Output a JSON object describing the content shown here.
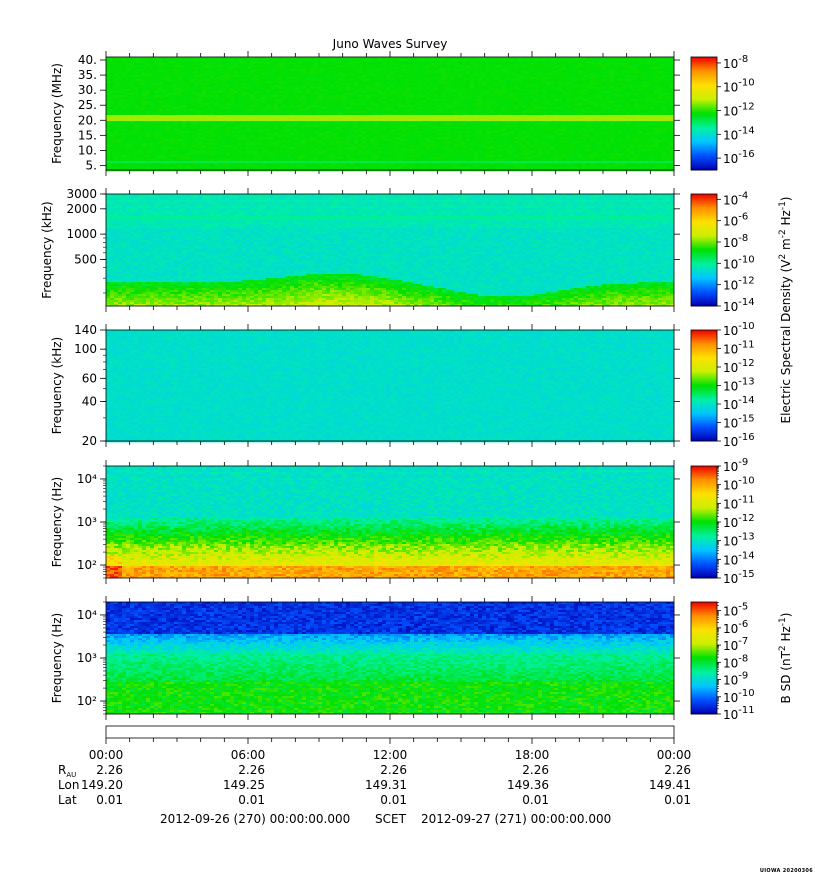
{
  "title": "Juno Waves Survey",
  "stamp": "UIOWA 20200306",
  "chart_data": [
    {
      "type": "heatmap",
      "ylabel": "Frequency (MHz)",
      "yscale": "linear",
      "ylim": [
        3.5,
        41
      ],
      "yticks": [
        {
          "v": 5,
          "t": "5."
        },
        {
          "v": 10,
          "t": "10."
        },
        {
          "v": 15,
          "t": "15."
        },
        {
          "v": 20,
          "t": "20."
        },
        {
          "v": 25,
          "t": "25."
        },
        {
          "v": 30,
          "t": "30."
        },
        {
          "v": 35,
          "t": "35."
        },
        {
          "v": 40,
          "t": "40."
        }
      ],
      "colorbar": {
        "exp_min": -17,
        "exp_max": -7.5,
        "labels": [
          -8,
          -10,
          -12,
          -14,
          -16
        ],
        "minor": 0
      },
      "colorbar_label": "",
      "pattern": "mhz"
    },
    {
      "type": "heatmap",
      "ylabel": "Frequency (kHz)",
      "yscale": "log",
      "ylim": [
        140,
        3000
      ],
      "yticks": [
        {
          "v": 500,
          "t": "500"
        },
        {
          "v": 1000,
          "t": "1000"
        },
        {
          "v": 2000,
          "t": "2000"
        },
        {
          "v": 3000,
          "t": "3000"
        }
      ],
      "colorbar": {
        "exp_min": -14,
        "exp_max": -3.5,
        "labels": [
          -4,
          -6,
          -8,
          -10,
          -12,
          -14
        ],
        "minor": 0
      },
      "colorbar_label": "",
      "pattern": "khz_high"
    },
    {
      "type": "heatmap",
      "ylabel": "Frequency (kHz)",
      "yscale": "log",
      "ylim": [
        20,
        140
      ],
      "yticks": [
        {
          "v": 20,
          "t": "20"
        },
        {
          "v": 40,
          "t": "40"
        },
        {
          "v": 60,
          "t": "60"
        },
        {
          "v": 100,
          "t": "100"
        },
        {
          "v": 140,
          "t": "140"
        }
      ],
      "colorbar": {
        "exp_min": -16,
        "exp_max": -10,
        "labels": [
          -10,
          -11,
          -12,
          -13,
          -14,
          -15,
          -16
        ],
        "minor": 0
      },
      "colorbar_label": "",
      "pattern": "khz_low"
    },
    {
      "type": "heatmap",
      "ylabel": "Frequency (Hz)",
      "yscale": "log",
      "ylim": [
        50,
        20000
      ],
      "yticks": [
        {
          "v": 100,
          "t": "10²",
          "tick": "2"
        },
        {
          "v": 1000,
          "t": "10³",
          "tick": "3"
        },
        {
          "v": 10000,
          "t": "10⁴",
          "tick": "4"
        }
      ],
      "colorbar": {
        "exp_min": -15,
        "exp_max": -9,
        "labels": [
          -9,
          -10,
          -11,
          -12,
          -13,
          -14,
          -15
        ],
        "minor": 1
      },
      "colorbar_label": "",
      "pattern": "e_hz"
    },
    {
      "type": "heatmap",
      "ylabel": "Frequency (Hz)",
      "yscale": "log",
      "ylim": [
        50,
        20000
      ],
      "yticks": [
        {
          "v": 100,
          "t": "10²"
        },
        {
          "v": 1000,
          "t": "10³"
        },
        {
          "v": 10000,
          "t": "10⁴"
        }
      ],
      "colorbar": {
        "exp_min": -11,
        "exp_max": -4.5,
        "labels": [
          -5,
          -6,
          -7,
          -8,
          -9,
          -10,
          -11
        ],
        "minor": 1
      },
      "colorbar_label": "",
      "pattern": "b_hz"
    }
  ],
  "shared_colorbar_label": {
    "base": "Electric Spectral Density (V",
    "sup1": "2",
    "mid": " m",
    "sup2": "-2",
    "mid2": " Hz",
    "sup3": "-1",
    "end": ")"
  },
  "bsd_label": {
    "base": "B SD (nT",
    "sup1": "2",
    "mid": " Hz",
    "sup2": "-1",
    "end": ")"
  },
  "xaxis": {
    "times": [
      "00:00",
      "06:00",
      "12:00",
      "18:00",
      "00:00"
    ],
    "rows": [
      {
        "label": "R",
        "sub": "AU",
        "values": [
          "2.26",
          "2.26",
          "2.26",
          "2.26",
          "2.26"
        ]
      },
      {
        "label": "Lon",
        "sub": "",
        "values": [
          "149.20",
          "149.25",
          "149.31",
          "149.36",
          "149.41"
        ]
      },
      {
        "label": "Lat",
        "sub": "",
        "values": [
          "0.01",
          "0.01",
          "0.01",
          "0.01",
          "0.01"
        ]
      }
    ],
    "start_label": "2012-09-26 (270) 00:00:00.000",
    "scet_label": "SCET",
    "end_label": "2012-09-27 (271) 00:00:00.000"
  },
  "colors": {
    "stops": [
      "#0000b0",
      "#0050ff",
      "#00c8ff",
      "#00f0a0",
      "#00e000",
      "#c8f000",
      "#ffe000",
      "#ff9000",
      "#f00000"
    ]
  }
}
